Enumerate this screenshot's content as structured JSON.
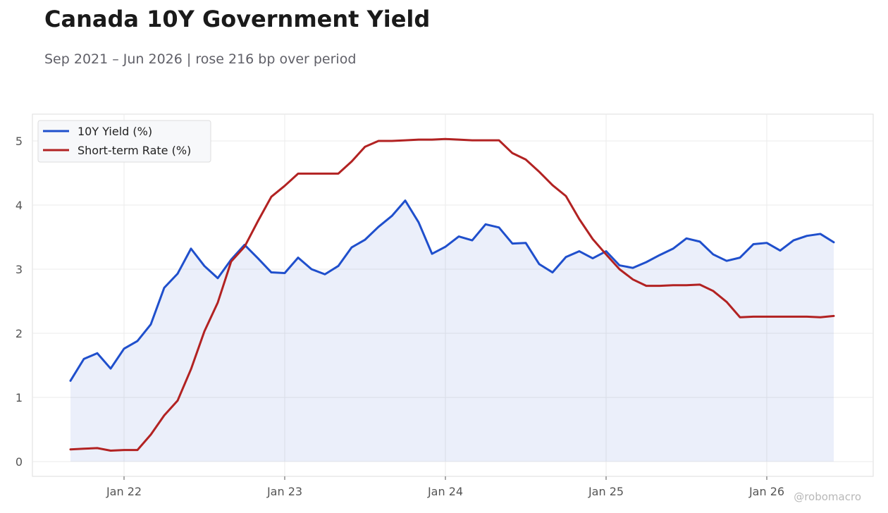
{
  "header": {
    "title": "Canada 10Y Government Yield",
    "subtitle": "Sep 2021 – Jun 2026 | rose 216 bp over period"
  },
  "watermark": "@robomacro",
  "chart_data": {
    "type": "line",
    "title": "Canada 10Y Government Yield",
    "subtitle": "Sep 2021 – Jun 2026 | rose 216 bp over period",
    "xlabel": "",
    "ylabel": "",
    "x_ticks": [
      "Jan 22",
      "Jan 23",
      "Jan 24",
      "Jan 25",
      "Jan 26"
    ],
    "y_ticks": [
      0,
      1,
      2,
      3,
      4,
      5
    ],
    "ylim": [
      -0.22,
      5.4
    ],
    "grid": true,
    "legend_position": "top-left",
    "x": [
      "2021-09",
      "2021-10",
      "2021-11",
      "2021-12",
      "2022-01",
      "2022-02",
      "2022-03",
      "2022-04",
      "2022-05",
      "2022-06",
      "2022-07",
      "2022-08",
      "2022-09",
      "2022-10",
      "2022-11",
      "2022-12",
      "2023-01",
      "2023-02",
      "2023-03",
      "2023-04",
      "2023-05",
      "2023-06",
      "2023-07",
      "2023-08",
      "2023-09",
      "2023-10",
      "2023-11",
      "2023-12",
      "2024-01",
      "2024-02",
      "2024-03",
      "2024-04",
      "2024-05",
      "2024-06",
      "2024-07",
      "2024-08",
      "2024-09",
      "2024-10",
      "2024-11",
      "2024-12",
      "2025-01",
      "2025-02",
      "2025-03",
      "2025-04",
      "2025-05",
      "2025-06",
      "2025-07",
      "2025-08",
      "2025-09",
      "2025-10",
      "2025-11",
      "2025-12",
      "2026-01",
      "2026-02",
      "2026-03",
      "2026-04",
      "2026-05",
      "2026-06"
    ],
    "series": [
      {
        "name": "10Y Yield (%)",
        "color": "#1f4fcc",
        "fill": true,
        "values": [
          1.26,
          1.6,
          1.69,
          1.45,
          1.76,
          1.88,
          2.14,
          2.71,
          2.93,
          3.32,
          3.05,
          2.86,
          3.15,
          3.38,
          3.17,
          2.95,
          2.94,
          3.18,
          3.0,
          2.92,
          3.05,
          3.34,
          3.46,
          3.66,
          3.83,
          4.07,
          3.73,
          3.24,
          3.35,
          3.51,
          3.45,
          3.7,
          3.65,
          3.4,
          3.41,
          3.08,
          2.95,
          3.19,
          3.28,
          3.17,
          3.28,
          3.06,
          3.02,
          3.11,
          3.22,
          3.32,
          3.48,
          3.43,
          3.23,
          3.13,
          3.18,
          3.39,
          3.41,
          3.29,
          3.45,
          3.52,
          3.55,
          3.42
        ]
      },
      {
        "name": "Short-term Rate (%)",
        "color": "#b22222",
        "fill": false,
        "values": [
          0.19,
          0.2,
          0.21,
          0.17,
          0.18,
          0.18,
          0.42,
          0.72,
          0.95,
          1.44,
          2.03,
          2.48,
          3.12,
          3.35,
          3.75,
          4.13,
          4.3,
          4.49,
          4.49,
          4.49,
          4.49,
          4.68,
          4.91,
          5.0,
          5.0,
          5.01,
          5.02,
          5.02,
          5.03,
          5.02,
          5.01,
          5.01,
          5.01,
          4.81,
          4.71,
          4.52,
          4.31,
          4.14,
          3.78,
          3.47,
          3.23,
          3.0,
          2.84,
          2.74,
          2.74,
          2.75,
          2.75,
          2.76,
          2.66,
          2.49,
          2.25,
          2.26,
          2.26,
          2.26,
          2.26,
          2.26,
          2.25,
          2.27
        ]
      }
    ]
  }
}
